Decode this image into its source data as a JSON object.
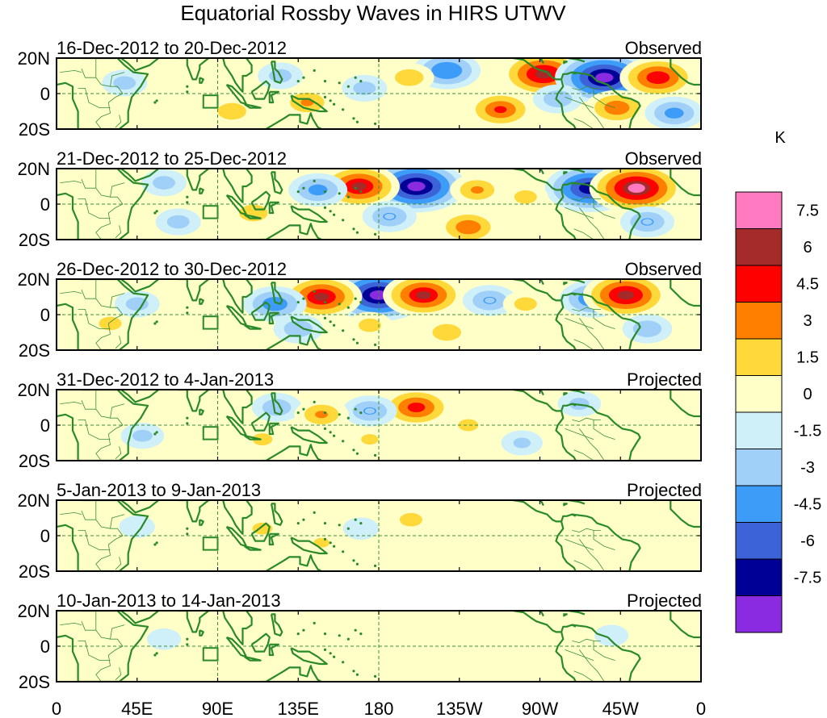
{
  "chart_data": {
    "type": "heatmap",
    "title": "Equatorial Rossby Waves in HIRS UTWV",
    "units": "K",
    "x_tick_labels": [
      "0",
      "45E",
      "90E",
      "135E",
      "180",
      "135W",
      "90W",
      "45W",
      "0"
    ],
    "x_tick_lon": [
      0,
      45,
      90,
      135,
      180,
      225,
      270,
      315,
      360
    ],
    "y_tick_labels": [
      "20N",
      "0",
      "20S"
    ],
    "y_tick_lat": [
      20,
      0,
      -20
    ],
    "xlim": [
      0,
      360
    ],
    "ylim": [
      -20,
      20
    ],
    "colorbar": {
      "labels": [
        "7.5",
        "6",
        "4.5",
        "3",
        "1.5",
        "0",
        "-1.5",
        "-3",
        "-4.5",
        "-6",
        "-7.5"
      ],
      "levels": [
        7.5,
        6,
        4.5,
        3,
        1.5,
        0,
        -1.5,
        -3,
        -4.5,
        -6,
        -7.5
      ],
      "colors": [
        "#ff7ac0",
        "#a52a2a",
        "#ff0000",
        "#ff7f00",
        "#ffd83a",
        "#ffffc8",
        "#cff0f8",
        "#a0d0f8",
        "#3c9cf8",
        "#3c64d8",
        "#000096",
        "#8a2be2"
      ]
    },
    "panels": [
      {
        "date_range": "16-Dec-2012 to 20-Dec-2012",
        "label": "Observed",
        "anomalies": [
          {
            "lon": 272,
            "lat": 11,
            "value": 6.5
          },
          {
            "lon": 306,
            "lat": 9,
            "value": -8.0
          },
          {
            "lon": 336,
            "lat": 9,
            "value": 5.5
          },
          {
            "lon": 218,
            "lat": 13,
            "value": -4.5
          },
          {
            "lon": 197,
            "lat": 9,
            "value": 2.5
          },
          {
            "lon": 248,
            "lat": -9,
            "value": 4.5
          },
          {
            "lon": 313,
            "lat": -8,
            "value": 4.0
          },
          {
            "lon": 345,
            "lat": -11,
            "value": -3.5
          },
          {
            "lon": 140,
            "lat": -5,
            "value": 3.0
          },
          {
            "lon": 98,
            "lat": -10,
            "value": 2.5
          },
          {
            "lon": 172,
            "lat": 3,
            "value": -2.0
          },
          {
            "lon": 38,
            "lat": 6,
            "value": -2.0
          },
          {
            "lon": 125,
            "lat": 10,
            "value": -2.0
          },
          {
            "lon": 280,
            "lat": -3,
            "value": -2.5
          }
        ]
      },
      {
        "date_range": "21-Dec-2012 to 25-Dec-2012",
        "label": "Observed",
        "anomalies": [
          {
            "lon": 201,
            "lat": 10,
            "value": -8.0
          },
          {
            "lon": 169,
            "lat": 10,
            "value": 6.0
          },
          {
            "lon": 298,
            "lat": 9,
            "value": -7.0
          },
          {
            "lon": 324,
            "lat": 9,
            "value": 7.5
          },
          {
            "lon": 146,
            "lat": 8,
            "value": -3.5
          },
          {
            "lon": 235,
            "lat": 8,
            "value": 3.0
          },
          {
            "lon": 262,
            "lat": 4,
            "value": 2.0
          },
          {
            "lon": 186,
            "lat": -7,
            "value": -3.0
          },
          {
            "lon": 230,
            "lat": -13,
            "value": 4.0
          },
          {
            "lon": 330,
            "lat": -10,
            "value": -3.0
          },
          {
            "lon": 110,
            "lat": -5,
            "value": 2.5
          },
          {
            "lon": 68,
            "lat": -10,
            "value": -2.0
          },
          {
            "lon": 60,
            "lat": 12,
            "value": -2.0
          }
        ]
      },
      {
        "date_range": "26-Dec-2012 to 30-Dec-2012",
        "label": "Observed",
        "anomalies": [
          {
            "lon": 180,
            "lat": 11,
            "value": -8.0
          },
          {
            "lon": 148,
            "lat": 10,
            "value": 6.0
          },
          {
            "lon": 205,
            "lat": 11,
            "value": 6.0
          },
          {
            "lon": 300,
            "lat": 9,
            "value": -4.5
          },
          {
            "lon": 318,
            "lat": 11,
            "value": 6.5
          },
          {
            "lon": 122,
            "lat": 6,
            "value": -4.0
          },
          {
            "lon": 242,
            "lat": 8,
            "value": -3.0
          },
          {
            "lon": 262,
            "lat": 6,
            "value": 2.0
          },
          {
            "lon": 218,
            "lat": -10,
            "value": 2.5
          },
          {
            "lon": 175,
            "lat": -6,
            "value": 2.0
          },
          {
            "lon": 135,
            "lat": -8,
            "value": -2.5
          },
          {
            "lon": 330,
            "lat": -8,
            "value": -2.5
          },
          {
            "lon": 30,
            "lat": -5,
            "value": 2.0
          },
          {
            "lon": 45,
            "lat": 6,
            "value": -2.0
          }
        ]
      },
      {
        "date_range": "31-Dec-2012 to 4-Jan-2013",
        "label": "Projected",
        "anomalies": [
          {
            "lon": 201,
            "lat": 10,
            "value": 5.0
          },
          {
            "lon": 175,
            "lat": 8,
            "value": -3.0
          },
          {
            "lon": 123,
            "lat": 10,
            "value": -2.5
          },
          {
            "lon": 148,
            "lat": 6,
            "value": 3.0
          },
          {
            "lon": 115,
            "lat": -8,
            "value": 1.8
          },
          {
            "lon": 230,
            "lat": 0,
            "value": 1.8
          },
          {
            "lon": 175,
            "lat": -8,
            "value": 1.6
          },
          {
            "lon": 292,
            "lat": 12,
            "value": -1.8
          },
          {
            "lon": 48,
            "lat": -6,
            "value": -1.8
          },
          {
            "lon": 260,
            "lat": -10,
            "value": -1.6
          }
        ]
      },
      {
        "date_range": "5-Jan-2013 to 9-Jan-2013",
        "label": "Projected",
        "anomalies": [
          {
            "lon": 198,
            "lat": 9,
            "value": 2.0
          },
          {
            "lon": 115,
            "lat": 4,
            "value": 1.8
          },
          {
            "lon": 148,
            "lat": -4,
            "value": 1.5
          },
          {
            "lon": 230,
            "lat": -6,
            "value": 1.2
          },
          {
            "lon": 170,
            "lat": 4,
            "value": -1.0
          },
          {
            "lon": 90,
            "lat": -10,
            "value": 1.0
          },
          {
            "lon": 300,
            "lat": -6,
            "value": 1.0
          },
          {
            "lon": 45,
            "lat": 5,
            "value": -1.0
          }
        ]
      },
      {
        "date_range": "10-Jan-2013 to 14-Jan-2013",
        "label": "Projected",
        "anomalies": [
          {
            "lon": 200,
            "lat": 5,
            "value": 1.2
          },
          {
            "lon": 130,
            "lat": -3,
            "value": 1.0
          },
          {
            "lon": 240,
            "lat": -6,
            "value": 0.9
          },
          {
            "lon": 60,
            "lat": 4,
            "value": -0.8
          },
          {
            "lon": 310,
            "lat": 6,
            "value": -0.8
          }
        ]
      }
    ]
  }
}
